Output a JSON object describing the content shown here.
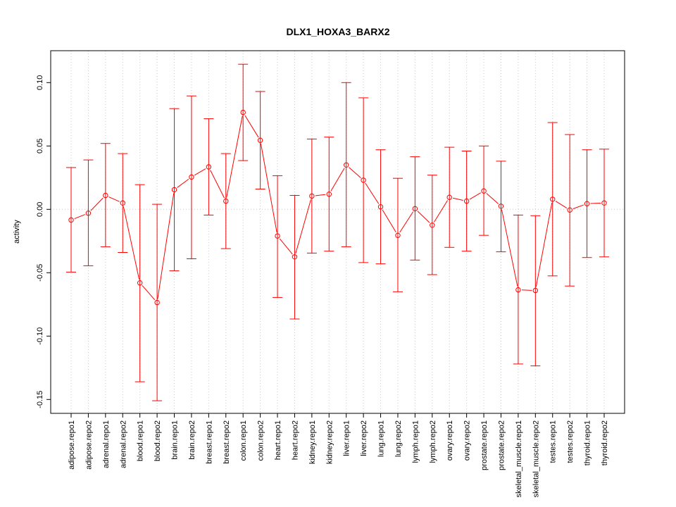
{
  "chart_data": {
    "type": "line",
    "title": "DLX1_HOXA3_BARX2",
    "xlabel": "",
    "ylabel": "activity",
    "ylim": [
      -0.16,
      0.125
    ],
    "yticks": [
      -0.15,
      -0.1,
      -0.05,
      0.0,
      0.05,
      0.1
    ],
    "ytick_labels": [
      "-0.15",
      "-0.10",
      "-0.05",
      "0.00",
      "0.05",
      "0.10"
    ],
    "grid": true,
    "color": "#ff0000",
    "categories": [
      "adipose.repo1",
      "adipose.repo2",
      "adrenal.repo1",
      "adrenal.repo2",
      "blood.repo1",
      "blood.repo2",
      "brain.repo1",
      "brain.repo2",
      "breast.repo1",
      "breast.repo2",
      "colon.repo1",
      "colon.repo2",
      "heart.repo1",
      "heart.repo2",
      "kidney.repo1",
      "kidney.repo2",
      "liver.repo1",
      "liver.repo2",
      "lung.repo1",
      "lung.repo2",
      "lymph.repo1",
      "lymph.repo2",
      "ovary.repo1",
      "ovary.repo2",
      "prostate.repo1",
      "prostate.repo2",
      "skeletal_muscle.repo1",
      "skeletal_muscle.repo2",
      "testes.repo1",
      "testes.repo2",
      "thyroid.repo1",
      "thyroid.repo2"
    ],
    "values": [
      -0.0084,
      -0.003,
      0.011,
      0.005,
      -0.058,
      -0.0735,
      0.0155,
      0.0255,
      0.0335,
      0.0065,
      0.0765,
      0.0545,
      -0.021,
      -0.0375,
      0.0105,
      0.012,
      0.035,
      0.023,
      0.002,
      -0.0205,
      0.0005,
      -0.0125,
      0.0095,
      0.0065,
      0.0145,
      0.0025,
      -0.0635,
      -0.064,
      0.008,
      -0.0005,
      0.0045,
      0.005
    ],
    "upper": [
      0.033,
      0.039,
      0.052,
      0.044,
      0.0195,
      0.004,
      0.0795,
      0.0895,
      0.0715,
      0.044,
      0.1145,
      0.093,
      0.0265,
      0.011,
      0.0555,
      0.057,
      0.1,
      0.088,
      0.047,
      0.0245,
      0.0415,
      0.027,
      0.049,
      0.046,
      0.05,
      0.038,
      -0.0045,
      -0.005,
      0.0685,
      0.059,
      0.047,
      0.0475
    ],
    "lower": [
      -0.0495,
      -0.0445,
      -0.0295,
      -0.034,
      -0.136,
      -0.151,
      -0.0485,
      -0.039,
      -0.0045,
      -0.031,
      0.0385,
      0.016,
      -0.0695,
      -0.0865,
      -0.0345,
      -0.033,
      -0.0295,
      -0.042,
      -0.043,
      -0.065,
      -0.04,
      -0.0515,
      -0.03,
      -0.033,
      -0.0205,
      -0.0335,
      -0.122,
      -0.1235,
      -0.0525,
      -0.0605,
      -0.038,
      -0.0375
    ]
  }
}
